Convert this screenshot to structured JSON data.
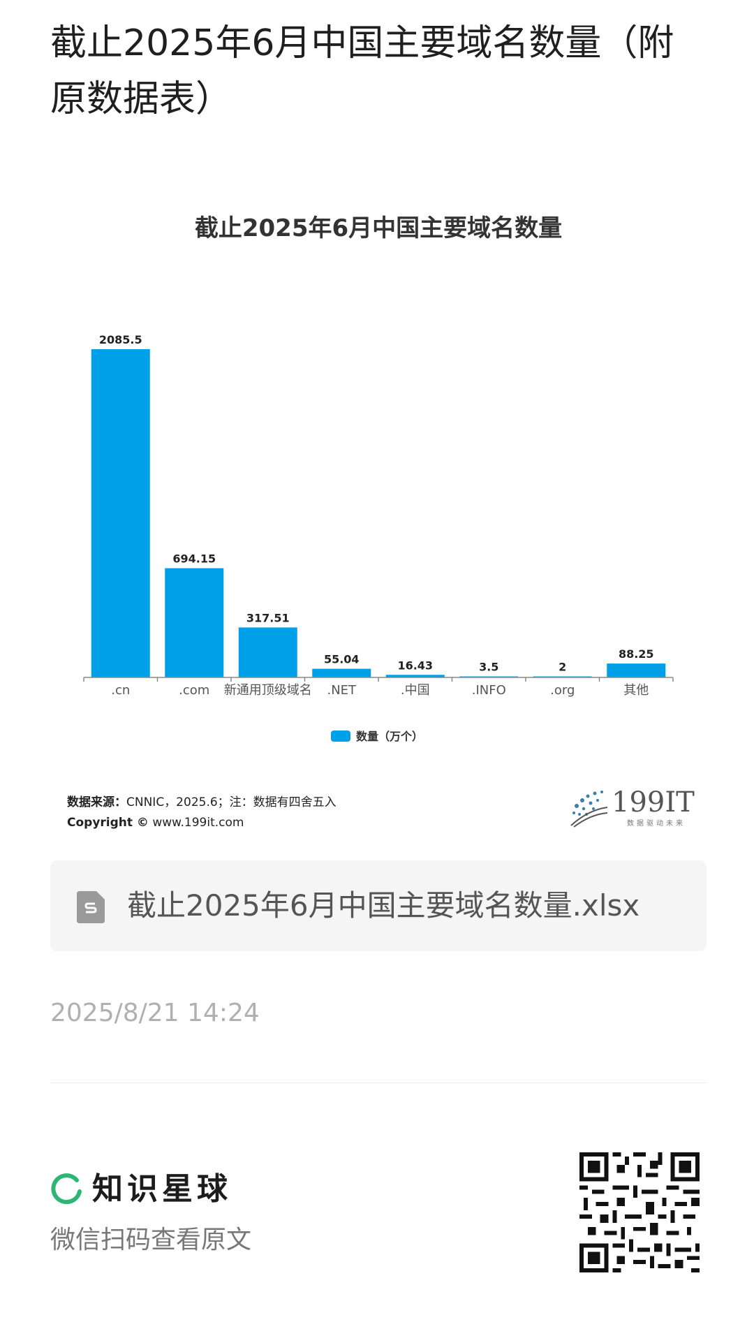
{
  "post": {
    "title": "截止2025年6月中国主要域名数量（附原数据表）",
    "date": "2025/8/21 14:24"
  },
  "chart": {
    "title": "截止2025年6月中国主要域名数量",
    "source_label": "数据来源：",
    "source_text": "CNNIC，2025.6；注：数据有四舍五入",
    "copyright_label": "Copyright ©",
    "copyright_site": " www.199it.com",
    "logo_text": "199IT",
    "logo_tagline": "数据驱动未来",
    "bar_color": "#00a0e9"
  },
  "chart_data": {
    "type": "bar",
    "title": "截止2025年6月中国主要域名数量",
    "categories": [
      ".cn",
      ".com",
      "新通用顶级域名",
      ".NET",
      ".中国",
      ".INFO",
      ".org",
      "其他"
    ],
    "series": [
      {
        "name": "数量（万个）",
        "values": [
          2085.5,
          694.15,
          317.51,
          55.04,
          16.43,
          3.5,
          2,
          88.25
        ],
        "labels": [
          "2085.5",
          "694.15",
          "317.51",
          "55.04",
          "16.43",
          "3.5",
          "2",
          "88.25"
        ]
      }
    ],
    "ylim": [
      0,
      2085.5
    ],
    "grid": false,
    "legend_position": "bottom"
  },
  "attachment": {
    "file_name": "截止2025年6月中国主要域名数量.xlsx",
    "icon": "spreadsheet-file-icon"
  },
  "footer": {
    "brand_name": "知识星球",
    "brand_icon": "zsxq-logo-icon",
    "brand_color": "#2bb673",
    "scan_hint": "微信扫码查看原文",
    "qr_icon": "qr-code-icon"
  }
}
